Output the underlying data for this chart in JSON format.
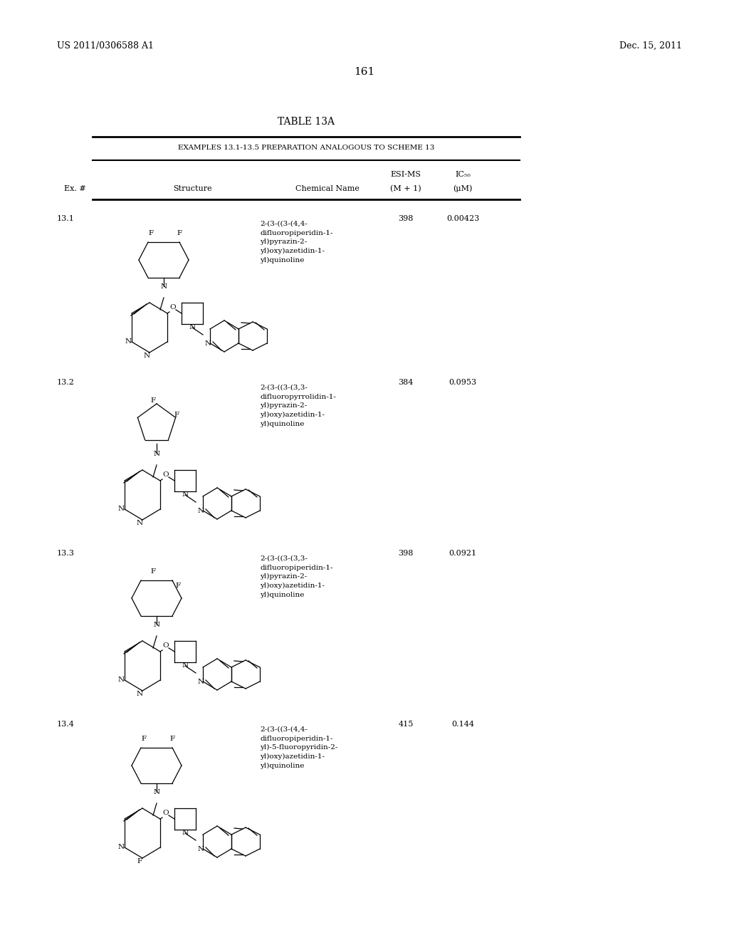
{
  "page_number": "161",
  "patent_left": "US 2011/0306588 A1",
  "patent_right": "Dec. 15, 2011",
  "table_title": "TABLE 13A",
  "table_subtitle": "EXAMPLES 13.1-13.5 PREPARATION ANALOGOUS TO SCHEME 13",
  "col_headers": [
    "Ex. #",
    "Structure",
    "Chemical Name",
    "ESI-MS\n(M + 1)",
    "IC₅₀\n(μM)"
  ],
  "col_header_line1": [
    "",
    "",
    "",
    "ESI-MS",
    "IC₅₀"
  ],
  "col_header_line2": [
    "Ex. #",
    "Structure",
    "Chemical Name",
    "(M + 1)",
    "(μM)"
  ],
  "rows": [
    {
      "ex": "13.1",
      "chem_name": "2-(3-((3-(4,4-\ndifluoropiperidin-1-\nyl)pyrazin-2-\nyl)oxy)azetidin-1-\nyl)quinoline",
      "esi_ms": "398",
      "ic50": "0.00423"
    },
    {
      "ex": "13.2",
      "chem_name": "2-(3-((3-(3,3-\ndifluoropyrrolidin-1-\nyl)pyrazin-2-\nyl)oxy)azetidin-1-\nyl)quinoline",
      "esi_ms": "384",
      "ic50": "0.0953"
    },
    {
      "ex": "13.3",
      "chem_name": "2-(3-((3-(3,3-\ndifluoropiperidin-1-\nyl)pyrazin-2-\nyl)oxy)azetidin-1-\nyl)quinoline",
      "esi_ms": "398",
      "ic50": "0.0921"
    },
    {
      "ex": "13.4",
      "chem_name": "2-(3-((3-(4,4-\ndifluoropiperidin-1-\nyl)-5-fluoropyridin-2-\nyl)oxy)azetidin-1-\nyl)quinoline",
      "esi_ms": "415",
      "ic50": "0.144"
    }
  ],
  "background_color": "#ffffff",
  "text_color": "#000000",
  "line_color": "#000000"
}
